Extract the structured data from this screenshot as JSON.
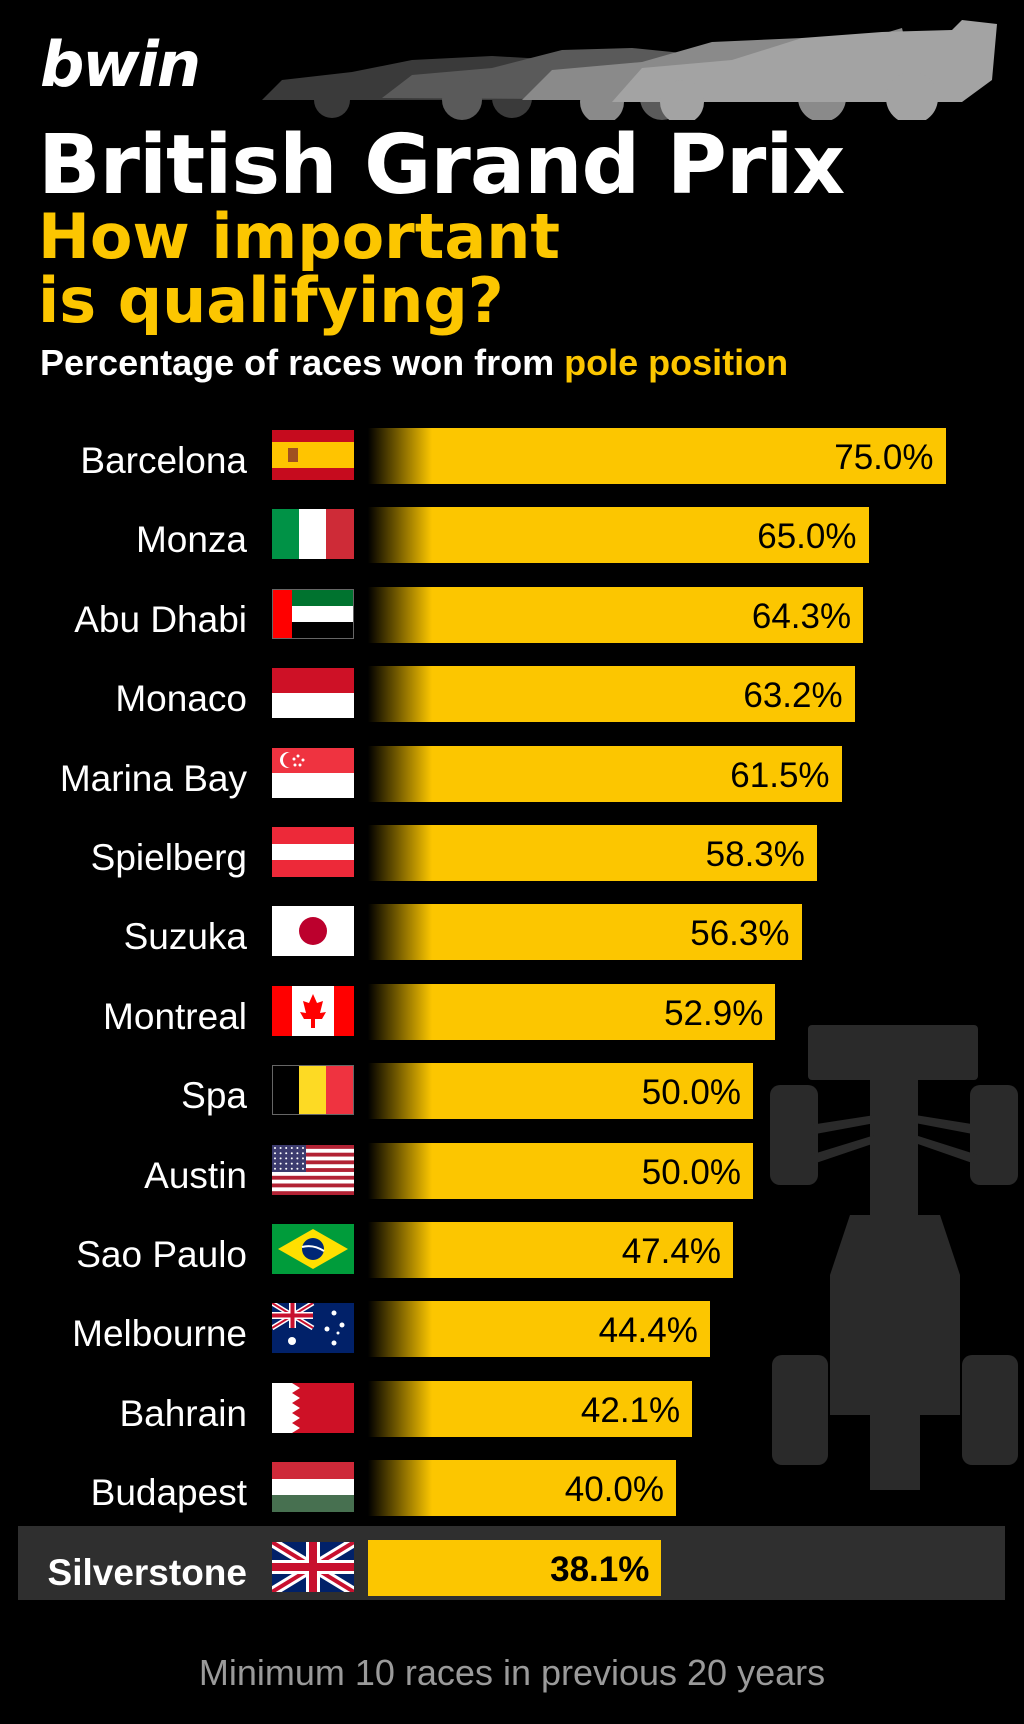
{
  "brand": {
    "logo_text": "bwin"
  },
  "header": {
    "title": "British Grand Prix",
    "subtitle_line1": "How important",
    "subtitle_line2": "is qualifying?",
    "caption_prefix": "Percentage of races won from ",
    "caption_highlight": "pole position"
  },
  "colors": {
    "accent": "#fcc600",
    "background": "#000000",
    "highlight_row": "#2f2f2f"
  },
  "chart_data": {
    "type": "bar",
    "orientation": "horizontal",
    "title": "Percentage of races won from pole position",
    "categories": [
      "Barcelona",
      "Monza",
      "Abu Dhabi",
      "Monaco",
      "Marina Bay",
      "Spielberg",
      "Suzuka",
      "Montreal",
      "Spa",
      "Austin",
      "Sao Paulo",
      "Melbourne",
      "Bahrain",
      "Budapest",
      "Silverstone"
    ],
    "values": [
      75.0,
      65.0,
      64.3,
      63.2,
      61.5,
      58.3,
      56.3,
      52.9,
      50.0,
      50.0,
      47.4,
      44.4,
      42.1,
      40.0,
      38.1
    ],
    "value_labels": [
      "75.0%",
      "65.0%",
      "64.3%",
      "63.2%",
      "61.5%",
      "58.3%",
      "56.3%",
      "52.9%",
      "50.0%",
      "50.0%",
      "47.4%",
      "44.4%",
      "42.1%",
      "40.0%",
      "38.1%"
    ],
    "flags": [
      "spain-flag-icon",
      "italy-flag-icon",
      "uae-flag-icon",
      "monaco-flag-icon",
      "singapore-flag-icon",
      "austria-flag-icon",
      "japan-flag-icon",
      "canada-flag-icon",
      "belgium-flag-icon",
      "usa-flag-icon",
      "brazil-flag-icon",
      "australia-flag-icon",
      "bahrain-flag-icon",
      "hungary-flag-icon",
      "uk-flag-icon"
    ],
    "highlighted": "Silverstone",
    "unit": "%"
  },
  "footnote": "Minimum 10 races in previous 20 years"
}
